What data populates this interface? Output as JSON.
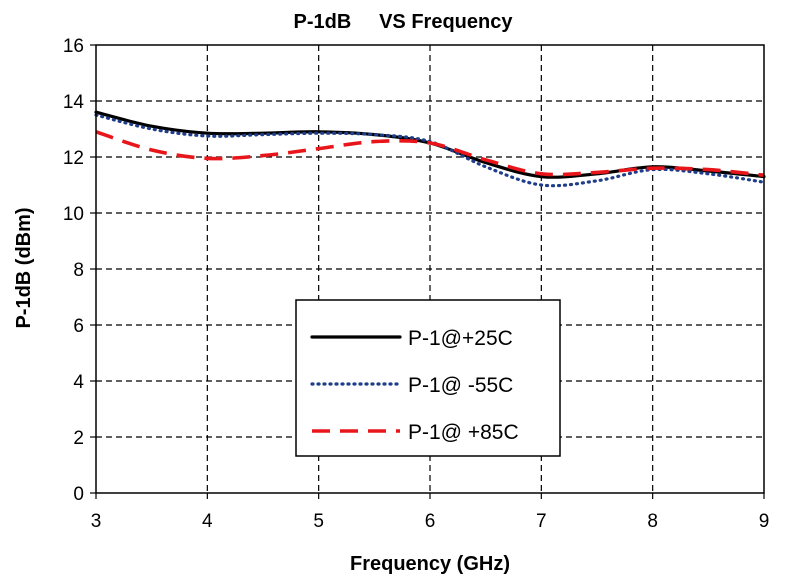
{
  "chart_data": {
    "type": "line",
    "title": "P-1dB     VS Frequency",
    "xlabel": "Frequency (GHz)",
    "ylabel": "P-1dB (dBm)",
    "xlim": [
      3,
      9
    ],
    "ylim": [
      0,
      16
    ],
    "xticks": [
      3,
      4,
      5,
      6,
      7,
      8,
      9
    ],
    "yticks": [
      0,
      2,
      4,
      6,
      8,
      10,
      12,
      14,
      16
    ],
    "grid": true,
    "legend_position": "center",
    "series": [
      {
        "name": "P-1@+25C",
        "color": "#000000",
        "style": "solid",
        "x": [
          3.0,
          3.5,
          4.0,
          4.5,
          5.0,
          5.5,
          6.0,
          6.5,
          7.0,
          7.5,
          8.0,
          8.5,
          9.0
        ],
        "y": [
          13.6,
          13.1,
          12.85,
          12.85,
          12.9,
          12.8,
          12.5,
          11.8,
          11.3,
          11.4,
          11.65,
          11.5,
          11.3
        ]
      },
      {
        "name": "P-1@ -55C",
        "color": "#1f3d8a",
        "style": "dotted",
        "x": [
          3.0,
          3.5,
          4.0,
          4.5,
          5.0,
          5.5,
          6.0,
          6.5,
          7.0,
          7.5,
          8.0,
          8.5,
          9.0
        ],
        "y": [
          13.5,
          13.0,
          12.75,
          12.8,
          12.85,
          12.8,
          12.55,
          11.65,
          11.0,
          11.15,
          11.55,
          11.4,
          11.1
        ]
      },
      {
        "name": "P-1@ +85C",
        "color": "#e8161b",
        "style": "dashed",
        "x": [
          3.0,
          3.5,
          4.0,
          4.5,
          5.0,
          5.5,
          6.0,
          6.5,
          7.0,
          7.5,
          8.0,
          8.5,
          9.0
        ],
        "y": [
          12.9,
          12.25,
          11.95,
          12.05,
          12.3,
          12.55,
          12.5,
          11.9,
          11.4,
          11.45,
          11.6,
          11.55,
          11.35
        ]
      }
    ]
  }
}
